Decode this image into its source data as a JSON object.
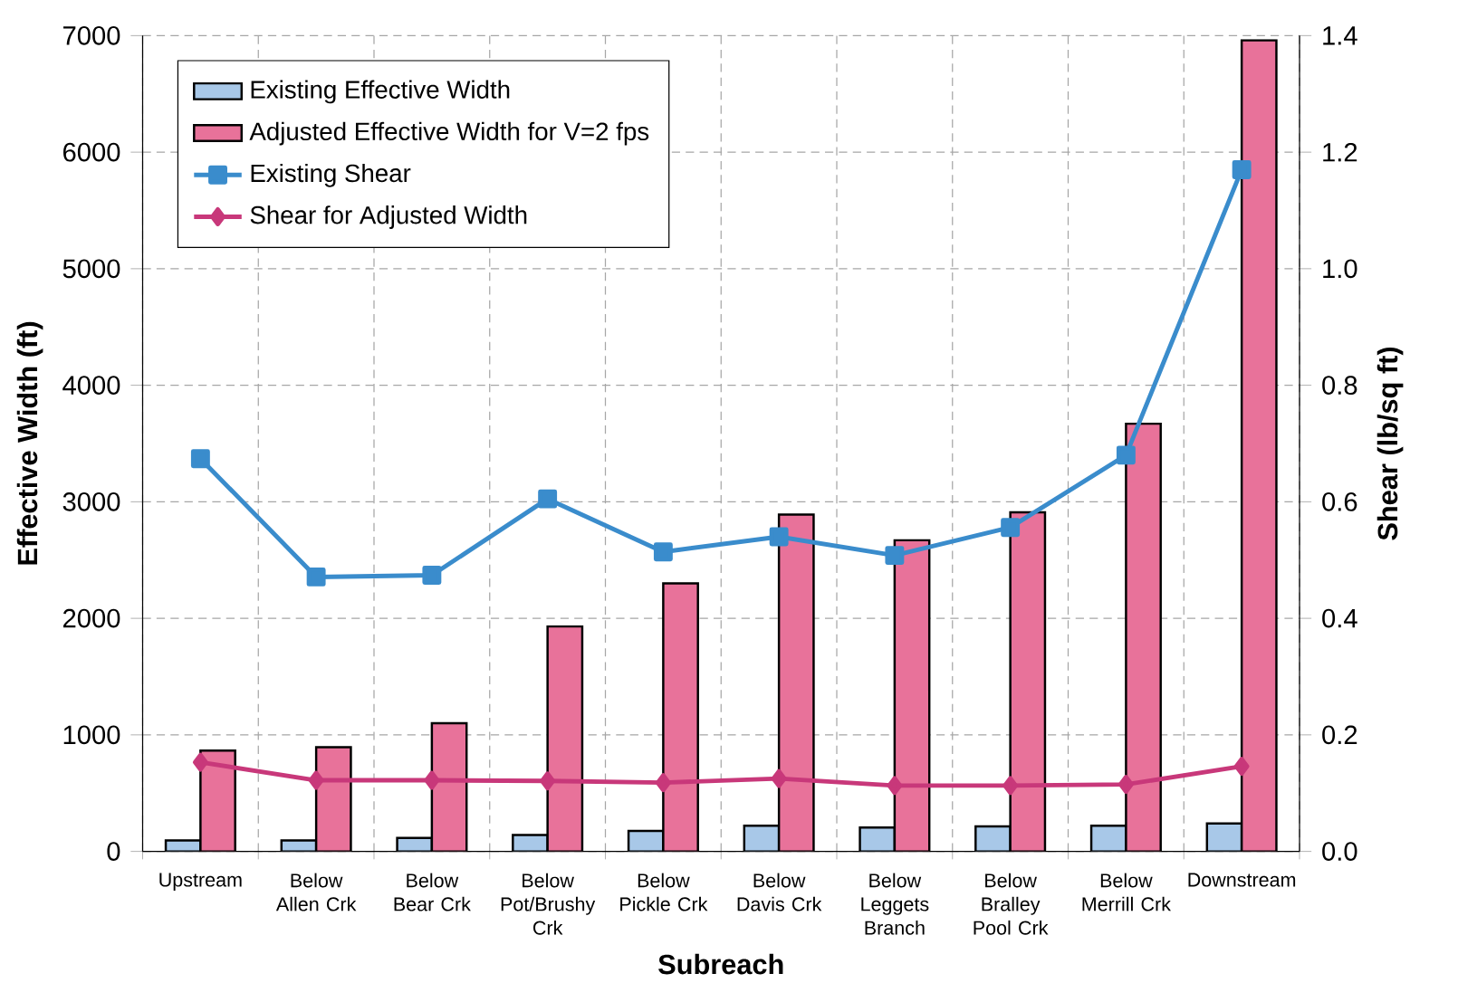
{
  "chart_data": {
    "type": "bar",
    "xlabel": "Subreach",
    "ylabel": "Effective Width (ft)",
    "y2label": "Shear (lb/sq ft)",
    "categories": [
      "Upstream",
      "Below Allen Crk",
      "Below Bear Crk",
      "Below Pot/Brushy Crk",
      "Below Pickle Crk",
      "Below Davis Crk",
      "Below Leggets Branch",
      "Below Bralley Pool Crk",
      "Below Merrill Crk",
      "Downstream"
    ],
    "series": [
      {
        "name": "Existing Effective Width",
        "color": "#a8c8e8",
        "values": [
          95,
          95,
          115,
          140,
          175,
          220,
          205,
          215,
          220,
          240
        ]
      },
      {
        "name": "Adjusted Effective Width for V=2 fps",
        "color": "#e8729a",
        "values": [
          865,
          895,
          1100,
          1930,
          2300,
          2890,
          2670,
          2910,
          3670,
          6960
        ]
      },
      {
        "name": "Existing Shear",
        "type": "line",
        "axis": "y2",
        "marker": "square",
        "color": "#3a8ccc",
        "values": [
          0.674,
          0.471,
          0.474,
          0.605,
          0.514,
          0.54,
          0.508,
          0.556,
          0.68,
          1.17
        ]
      },
      {
        "name": "Shear for Adjusted Width",
        "type": "line",
        "axis": "y2",
        "marker": "diamond",
        "color": "#c8387a",
        "values": [
          0.153,
          0.122,
          0.122,
          0.121,
          0.118,
          0.125,
          0.113,
          0.113,
          0.115,
          0.146
        ]
      }
    ],
    "ylim": [
      0,
      7000
    ],
    "yticks": [
      0,
      1000,
      2000,
      3000,
      4000,
      5000,
      6000,
      7000
    ],
    "y2lim": [
      0,
      1.4
    ],
    "y2ticks": [
      {
        "value": 0,
        "label": "0.0"
      },
      {
        "value": 0.2,
        "label": "0.2"
      },
      {
        "value": 0.4,
        "label": "0.4"
      },
      {
        "value": 0.6,
        "label": "0.6"
      },
      {
        "value": 0.8,
        "label": "0.8"
      },
      {
        "value": 1.0,
        "label": "1.0"
      },
      {
        "value": 1.2,
        "label": "1.2"
      },
      {
        "value": 1.4,
        "label": "1.4"
      }
    ],
    "grid": true,
    "legend": "top left"
  }
}
